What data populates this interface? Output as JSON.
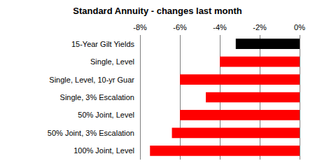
{
  "chart_data": {
    "type": "bar",
    "title": "Standard Annuity - changes last month",
    "orientation": "horizontal",
    "categories": [
      "15-Year Gilt Yields",
      "Single, Level",
      "Single, Level, 10-yr Guar",
      "Single, 3% Escalation",
      "50% Joint, Level",
      "50% Joint, 3% Escalation",
      "100% Joint, Level"
    ],
    "values": [
      -3.2,
      -4.0,
      -6.0,
      -4.7,
      -6.0,
      -6.4,
      -7.5
    ],
    "colors": [
      "#000000",
      "#ff0000",
      "#ff0000",
      "#ff0000",
      "#ff0000",
      "#ff0000",
      "#ff0000"
    ],
    "xlim": [
      -8,
      0
    ],
    "xticks": [
      {
        "value": -8,
        "label": "-8%"
      },
      {
        "value": -6,
        "label": "-6%"
      },
      {
        "value": -4,
        "label": "-4%"
      },
      {
        "value": -2,
        "label": "-2%"
      },
      {
        "value": 0,
        "label": "0%"
      }
    ],
    "grid": true
  }
}
